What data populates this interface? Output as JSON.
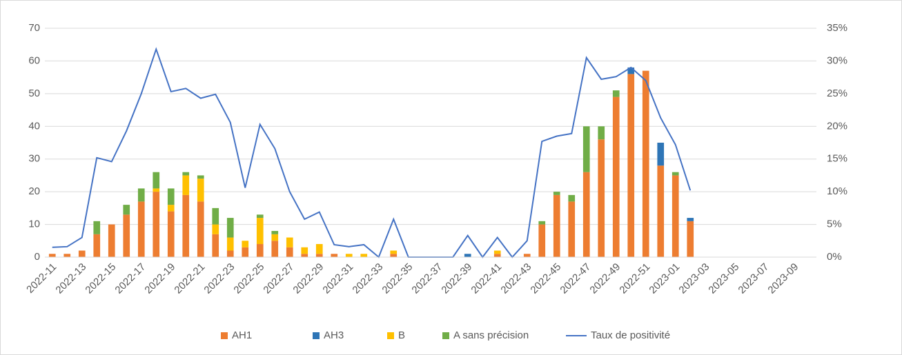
{
  "chart_data": {
    "type": "bar",
    "categories": [
      "2022-11",
      null,
      "2022-13",
      null,
      "2022-15",
      null,
      "2022-17",
      null,
      "2022-19",
      null,
      "2022-21",
      null,
      "2022-23",
      null,
      "2022-25",
      null,
      "2022-27",
      null,
      "2022-29",
      null,
      "2022-31",
      null,
      "2022-33",
      null,
      "2022-35",
      null,
      "2022-37",
      null,
      "2022-39",
      null,
      "2022-41",
      null,
      "2022-43",
      null,
      "2022-45",
      null,
      "2022-47",
      null,
      "2022-49",
      null,
      "2022-51",
      null,
      "2023-01",
      null,
      "2023-03",
      null,
      "2023-05",
      null,
      "2023-07",
      null,
      "2023-09",
      null
    ],
    "series": [
      {
        "name": "AH1",
        "color": "#ed7d31",
        "values": [
          1,
          1,
          2,
          7,
          10,
          13,
          17,
          20,
          14,
          19,
          17,
          7,
          2,
          3,
          4,
          5,
          3,
          1,
          1,
          1,
          0,
          0,
          0,
          1,
          0,
          0,
          0,
          0,
          0,
          0,
          1,
          0,
          1,
          10,
          19,
          17,
          26,
          36,
          49,
          56,
          57,
          28,
          25,
          11,
          null,
          null,
          null,
          null,
          null,
          null,
          null,
          null
        ]
      },
      {
        "name": "AH3",
        "color": "#2e75b6",
        "values": [
          0,
          0,
          0,
          0,
          0,
          0,
          0,
          0,
          0,
          0,
          0,
          0,
          0,
          0,
          0,
          0,
          0,
          0,
          0,
          0,
          0,
          0,
          0,
          0,
          0,
          0,
          0,
          0,
          1,
          0,
          0,
          0,
          0,
          0,
          0,
          0,
          0,
          0,
          0,
          2,
          0,
          7,
          0,
          1,
          null,
          null,
          null,
          null,
          null,
          null,
          null,
          null
        ]
      },
      {
        "name": "B",
        "color": "#ffc000",
        "values": [
          0,
          0,
          0,
          0,
          0,
          0,
          0,
          1,
          2,
          6,
          7,
          3,
          4,
          2,
          8,
          2,
          3,
          2,
          3,
          0,
          1,
          1,
          0,
          1,
          0,
          0,
          0,
          0,
          0,
          0,
          1,
          0,
          0,
          0,
          0,
          0,
          0,
          0,
          0,
          0,
          0,
          0,
          0,
          0,
          null,
          null,
          null,
          null,
          null,
          null,
          null,
          null
        ]
      },
      {
        "name": "A sans précision",
        "color": "#70ad47",
        "values": [
          0,
          0,
          0,
          4,
          0,
          3,
          4,
          5,
          5,
          1,
          1,
          5,
          6,
          0,
          1,
          1,
          0,
          0,
          0,
          0,
          0,
          0,
          0,
          0,
          0,
          0,
          0,
          0,
          0,
          0,
          0,
          0,
          0,
          1,
          1,
          2,
          14,
          4,
          2,
          0,
          0,
          0,
          1,
          0,
          null,
          null,
          null,
          null,
          null,
          null,
          null,
          null
        ]
      },
      {
        "name": "Taux de positivité",
        "color": "#4472c4",
        "type": "line",
        "axis": "y2",
        "values": [
          1.5,
          1.6,
          3.0,
          15.2,
          14.6,
          19.3,
          25.0,
          31.8,
          25.3,
          25.8,
          24.3,
          24.9,
          20.6,
          10.6,
          20.3,
          16.6,
          10.0,
          5.8,
          6.9,
          1.9,
          1.6,
          1.9,
          0,
          5.8,
          0,
          0,
          0,
          0,
          3.3,
          0,
          3.0,
          0,
          2.5,
          17.7,
          18.5,
          18.9,
          30.5,
          27.2,
          27.6,
          29.0,
          27.0,
          21.3,
          17.2,
          10.2,
          null,
          null,
          null,
          null,
          null,
          null,
          null,
          null
        ]
      }
    ],
    "ylim": [
      0,
      70
    ],
    "yticks": [
      0,
      10,
      20,
      30,
      40,
      50,
      60,
      70
    ],
    "y2lim": [
      0,
      35
    ],
    "y2ticks": [
      {
        "value": 0,
        "label": "0%"
      },
      {
        "value": 5,
        "label": "5%"
      },
      {
        "value": 10,
        "label": "10%"
      },
      {
        "value": 15,
        "label": "15%"
      },
      {
        "value": 20,
        "label": "20%"
      },
      {
        "value": 25,
        "label": "25%"
      },
      {
        "value": 30,
        "label": "30%"
      },
      {
        "value": 35,
        "label": "35%"
      }
    ],
    "grid": true,
    "stacked": true,
    "legend": "bottom"
  }
}
